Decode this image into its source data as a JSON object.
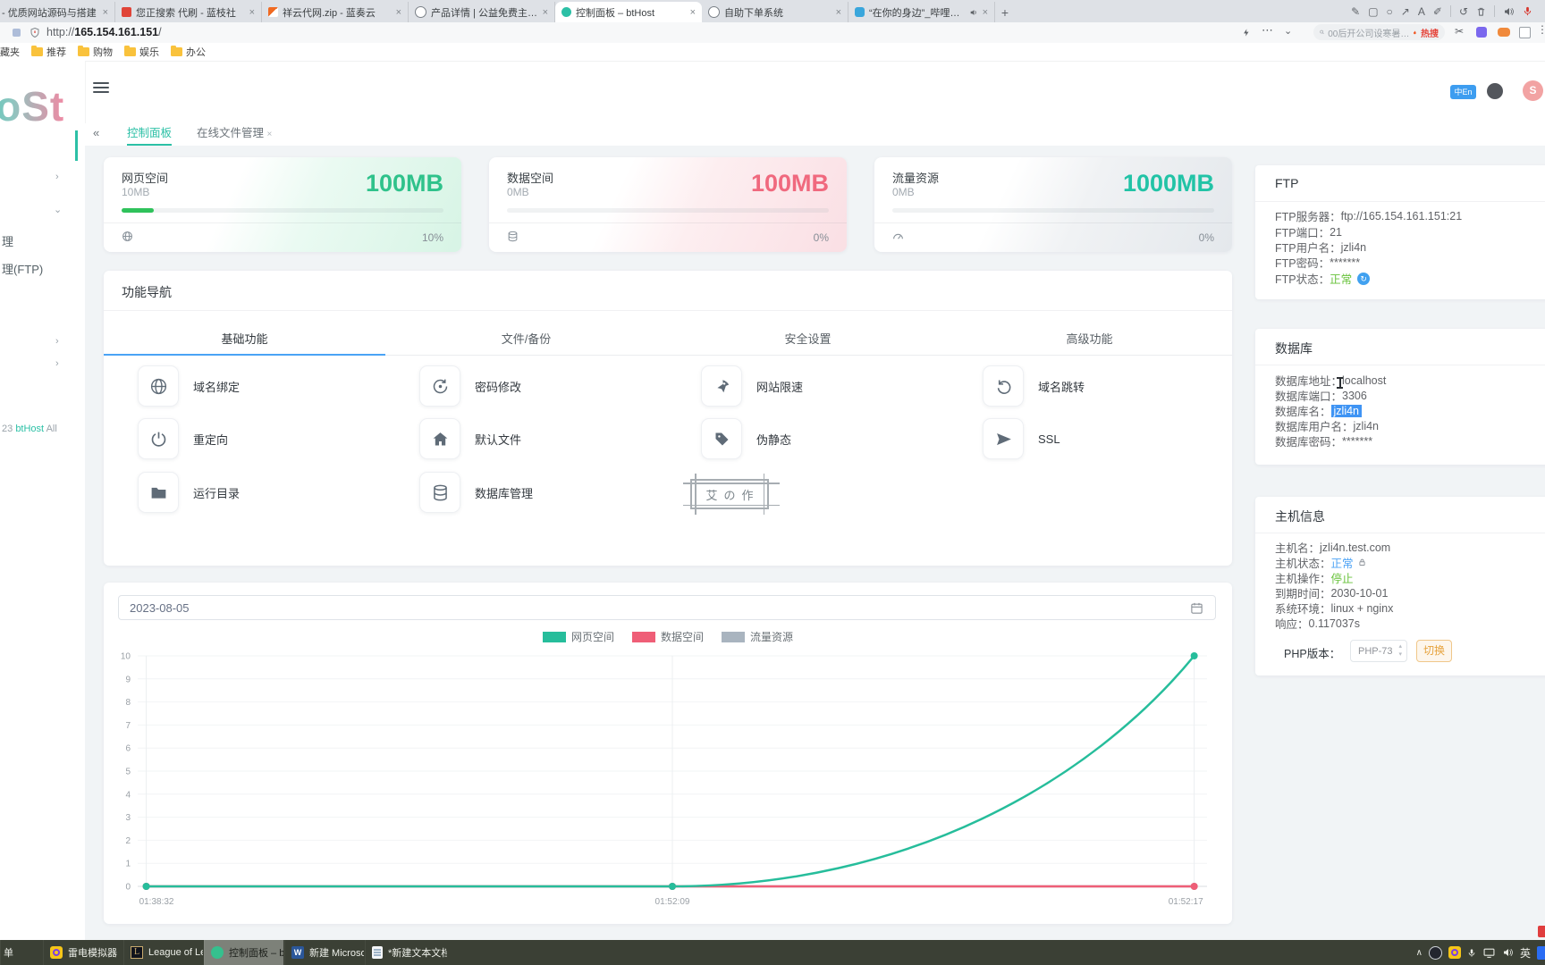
{
  "browser": {
    "tabs": [
      {
        "title": "社 - 优质网站源码与搭建",
        "icon": "site"
      },
      {
        "title": "您正搜索 代刷 - 蓝枝社",
        "icon": "red-book"
      },
      {
        "title": "祥云代网.zip - 蓝奏云",
        "icon": "lanzou-flag"
      },
      {
        "title": "产品详情 | 公益免费主机互联",
        "icon": "globe"
      },
      {
        "title": "控制面板 – btHost",
        "icon": "bthost"
      },
      {
        "title": "自助下单系统",
        "icon": "globe"
      },
      {
        "title": "“在你的身边”_哔哩哔哩_bi",
        "icon": "bilibili"
      }
    ],
    "active_tab_index": 4,
    "close_glyph": "×",
    "new_tab_glyph": "+",
    "annotation_tools": [
      "pencil",
      "rectangle",
      "circle",
      "arrow",
      "text",
      "brush",
      "undo",
      "trash",
      "speaker",
      "microphone"
    ],
    "url": {
      "scheme": "http://",
      "host": "165.154.161.151",
      "path": "/"
    },
    "search": {
      "text": "00后开公司设寒暑…",
      "hot_label": "热搜"
    },
    "bookmarks": {
      "partial_item": "藏夹",
      "folders": [
        "推荐",
        "购物",
        "娱乐",
        "办公"
      ]
    }
  },
  "sidebar": {
    "logo_text": "hoSt",
    "visible_items": [
      "理",
      "理(FTP)"
    ],
    "footer": {
      "prefix": "23",
      "brand": "btHost",
      "suffix": "All"
    }
  },
  "header": {
    "lang_badge": "中En",
    "avatar_letter": "S"
  },
  "panel_tabs": {
    "collapse_glyph": "«",
    "tabs": [
      {
        "label": "控制面板",
        "active": true
      },
      {
        "label": "在线文件管理",
        "active": false,
        "close_glyph": "×"
      }
    ]
  },
  "cards": [
    {
      "title": "网页空间",
      "used": "10MB",
      "total": "100MB",
      "percent": "10%",
      "value_color": "#2fc28b",
      "tint": "#d7f4e5",
      "icon": "globe"
    },
    {
      "title": "数据空间",
      "used": "0MB",
      "total": "100MB",
      "percent": "0%",
      "value_color": "#f0697e",
      "tint": "#fadfe4",
      "icon": "database"
    },
    {
      "title": "流量资源",
      "used": "0MB",
      "total": "1000MB",
      "percent": "0%",
      "value_color": "#22c3a6",
      "tint": "#e4e8ec",
      "icon": "traffic"
    }
  ],
  "features": {
    "title": "功能导航",
    "tabs": [
      {
        "label": "基础功能",
        "active": true
      },
      {
        "label": "文件/备份",
        "active": false
      },
      {
        "label": "安全设置",
        "active": false
      },
      {
        "label": "高级功能",
        "active": false
      }
    ],
    "active_underline_color": "#4aa3f5",
    "items": [
      {
        "label": "域名绑定",
        "icon": "globe"
      },
      {
        "label": "密码修改",
        "icon": "password-rotate"
      },
      {
        "label": "网站限速",
        "icon": "rocket"
      },
      {
        "label": "域名跳转",
        "icon": "undo-arrow"
      },
      {
        "label": "重定向",
        "icon": "power"
      },
      {
        "label": "默认文件",
        "icon": "home"
      },
      {
        "label": "伪静态",
        "icon": "tag"
      },
      {
        "label": "SSL",
        "icon": "send"
      },
      {
        "label": "运行目录",
        "icon": "folder"
      },
      {
        "label": "数据库管理",
        "icon": "database"
      }
    ]
  },
  "stamp": {
    "text": "艾の作"
  },
  "chart_data": {
    "type": "line",
    "date": "2023-08-05",
    "x": [
      "01:38:32",
      "01:52:09",
      "01:52:17"
    ],
    "x_positions": [
      0.008,
      0.5,
      0.988
    ],
    "ylim": [
      0,
      10
    ],
    "ytick_step": 1,
    "grid": true,
    "legend_position": "top-center",
    "series": [
      {
        "name": "网页空间",
        "color": "#26bd9b",
        "values": [
          0,
          0,
          10
        ]
      },
      {
        "name": "数据空间",
        "color": "#ef5e77",
        "values": [
          0,
          0,
          0
        ]
      },
      {
        "name": "流量资源",
        "color": "#a9b4bf",
        "values": [
          0,
          0,
          0
        ]
      }
    ]
  },
  "ftp": {
    "title": "FTP",
    "rows": [
      {
        "label": "FTP服务器：",
        "value": "ftp://165.154.161.151:21"
      },
      {
        "label": "FTP端口：",
        "value": "21"
      },
      {
        "label": "FTP用户名：",
        "value": "jzli4n"
      },
      {
        "label": "FTP密码：",
        "value": "*******"
      },
      {
        "label": "FTP状态：",
        "value": "正常",
        "value_color": "#67c23a",
        "badge_glyph": "↻"
      }
    ]
  },
  "database": {
    "title": "数据库",
    "rows": [
      {
        "label": "数据库地址：",
        "value": "localhost"
      },
      {
        "label": "数据库端口：",
        "value": "3306"
      },
      {
        "label": "数据库名：",
        "value": "jzli4n",
        "selected": true
      },
      {
        "label": "数据库用户名：",
        "value": "jzli4n"
      },
      {
        "label": "数据库密码：",
        "value": "*******"
      }
    ]
  },
  "host": {
    "title": "主机信息",
    "rows": [
      {
        "label": "主机名：",
        "value": "jzli4n.test.com"
      },
      {
        "label": "主机状态：",
        "value": "正常",
        "value_color": "#4da3f5",
        "lock": true
      },
      {
        "label": "主机操作：",
        "value": "停止",
        "value_color": "#67c23a"
      },
      {
        "label": "到期时间：",
        "value": "2030-10-01"
      },
      {
        "label": "系统环境：",
        "value": "linux + nginx"
      },
      {
        "label": "响应：",
        "value": "0.117037s"
      }
    ],
    "php": {
      "label": "PHP版本：",
      "selected": "PHP-73",
      "button": "切换",
      "button_color": "#e6a23c"
    }
  },
  "taskbar": {
    "items": [
      {
        "label": "单",
        "icon": "cut-window"
      },
      {
        "label": "雷电模拟器",
        "icon": "leidian"
      },
      {
        "label": "League of Legends",
        "icon": "lol"
      },
      {
        "label": "控制面板 – btHost…",
        "icon": "bthost",
        "active": true
      },
      {
        "label": "新建 Microsoft W…",
        "icon": "word"
      },
      {
        "label": "*新建文本文档.txt -…",
        "icon": "notepad"
      }
    ],
    "tray": {
      "expand_glyph": "∧",
      "ime_label": "英"
    }
  }
}
